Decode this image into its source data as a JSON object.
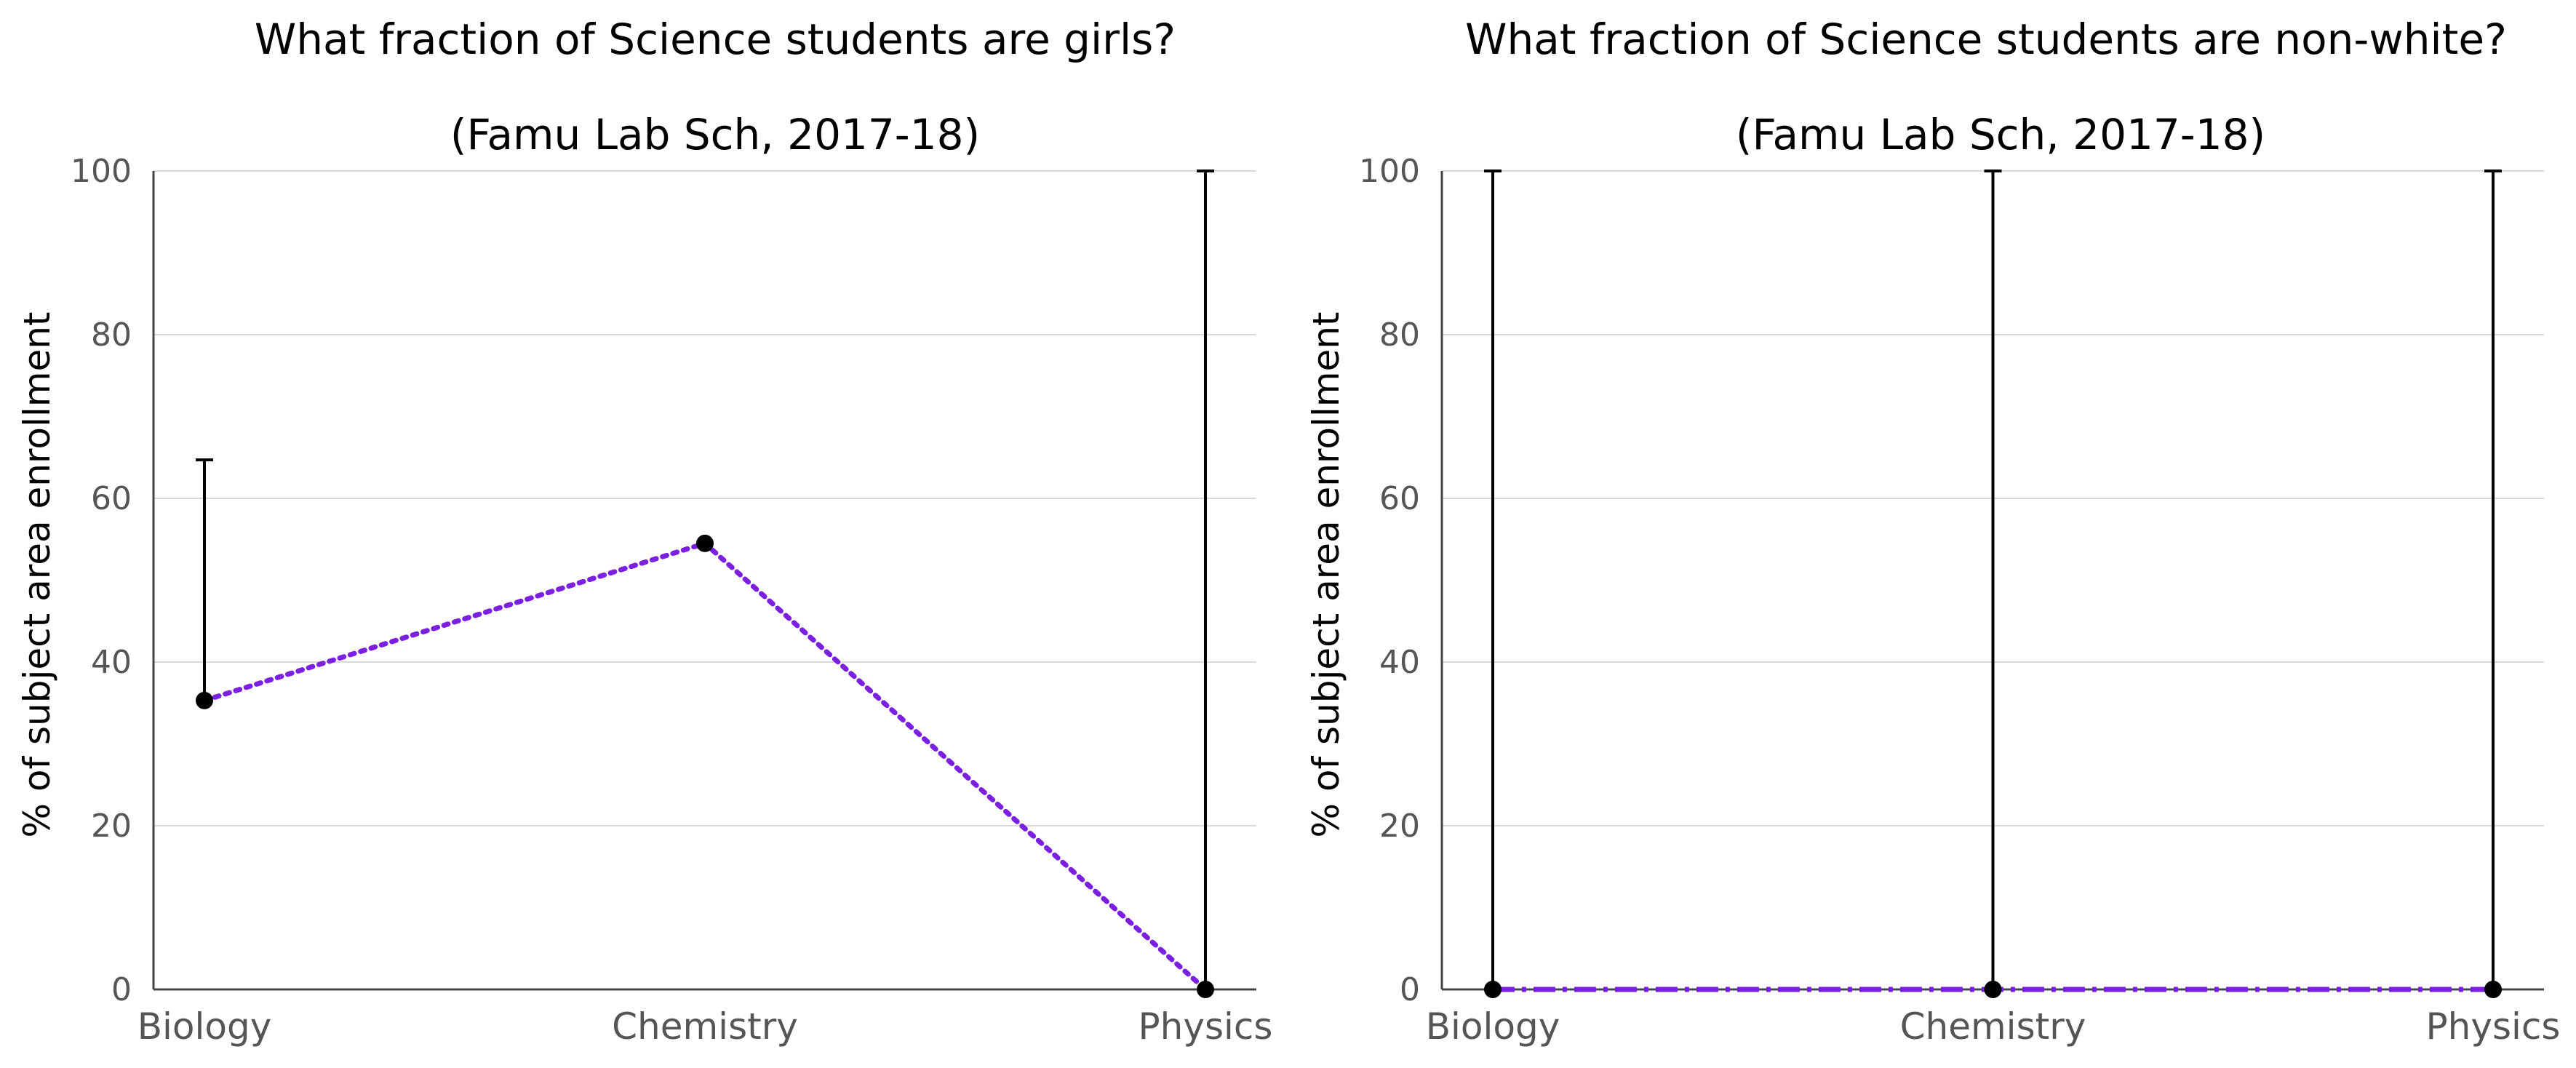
{
  "chart_data": [
    {
      "type": "line",
      "title": "What fraction of Science students are girls?",
      "subtitle": "(Famu Lab Sch, 2017-18)",
      "xlabel": "",
      "ylabel": "% of subject area enrollment",
      "categories": [
        "Biology",
        "Chemistry",
        "Physics"
      ],
      "ylim": [
        0,
        100
      ],
      "yticks": [
        0,
        20,
        40,
        60,
        80,
        100
      ],
      "grid": true,
      "series": [
        {
          "values": [
            35.3,
            54.5,
            0
          ],
          "error_low": [
            35.3,
            54.5,
            0
          ],
          "error_high": [
            64.7,
            54.5,
            100
          ],
          "color": "#7b1fe0",
          "linestyle": "dotted"
        }
      ]
    },
    {
      "type": "line",
      "title": "What fraction of Science students are non-white?",
      "subtitle": "(Famu Lab Sch, 2017-18)",
      "xlabel": "",
      "ylabel": "% of subject area enrollment",
      "categories": [
        "Biology",
        "Chemistry",
        "Physics"
      ],
      "ylim": [
        0,
        100
      ],
      "yticks": [
        0,
        20,
        40,
        60,
        80,
        100
      ],
      "grid": true,
      "series": [
        {
          "values": [
            0,
            0,
            0
          ],
          "error_low": [
            0,
            0,
            0
          ],
          "error_high": [
            100,
            100,
            100
          ],
          "color": "#7b1fe0",
          "linestyle": "dash-dot"
        }
      ]
    }
  ]
}
